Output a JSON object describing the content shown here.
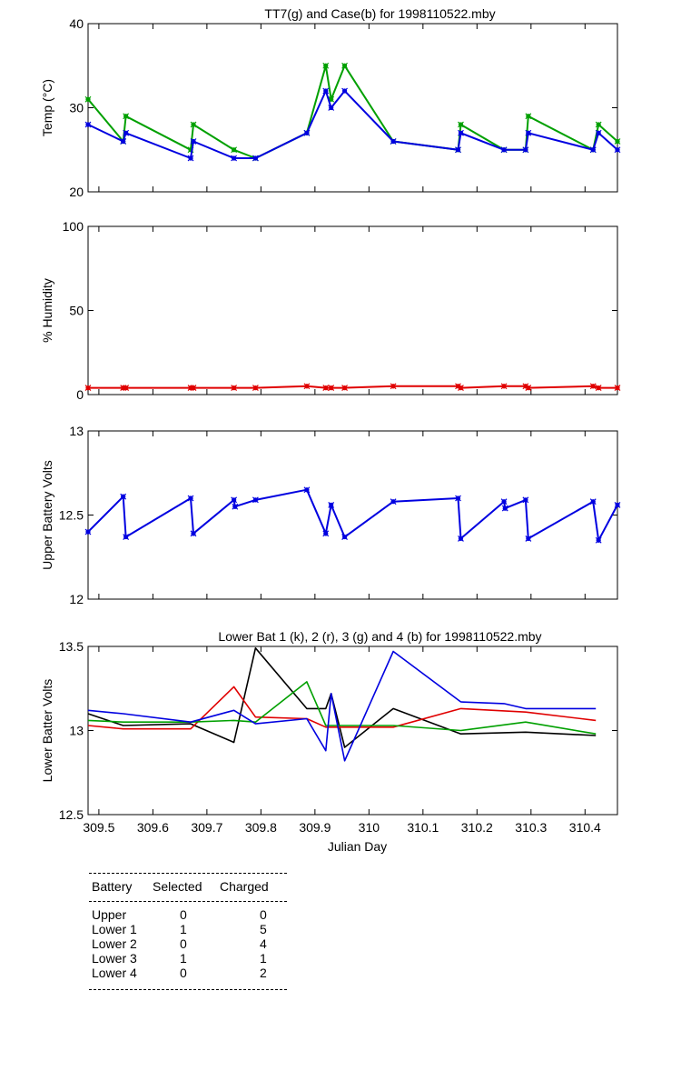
{
  "chart_data": [
    {
      "type": "line",
      "title": "TT7(g) and Case(b) for 1998110522.mby",
      "xlabel": "",
      "ylabel": "Temp  (°C)",
      "xlim": [
        309.48,
        310.46
      ],
      "ylim": [
        20,
        40
      ],
      "yticks": [
        20,
        30,
        40
      ],
      "grid": false,
      "series": [
        {
          "color": "#00a000",
          "markers": true,
          "points": [
            [
              309.48,
              31
            ],
            [
              309.545,
              26
            ],
            [
              309.55,
              29
            ],
            [
              309.67,
              25
            ],
            [
              309.675,
              28
            ],
            [
              309.75,
              25
            ],
            [
              309.79,
              24
            ],
            [
              309.885,
              27
            ],
            [
              309.92,
              35
            ],
            [
              309.93,
              31
            ],
            [
              309.955,
              35
            ],
            [
              310.045,
              26
            ],
            [
              310.165,
              25
            ],
            [
              310.17,
              28
            ],
            [
              310.25,
              25
            ],
            [
              310.29,
              25
            ],
            [
              310.295,
              29
            ],
            [
              310.415,
              25
            ],
            [
              310.425,
              28
            ],
            [
              310.46,
              26
            ]
          ]
        },
        {
          "color": "#0000e0",
          "markers": true,
          "points": [
            [
              309.48,
              28
            ],
            [
              309.545,
              26
            ],
            [
              309.55,
              27
            ],
            [
              309.67,
              24
            ],
            [
              309.675,
              26
            ],
            [
              309.75,
              24
            ],
            [
              309.79,
              24
            ],
            [
              309.885,
              27
            ],
            [
              309.92,
              32
            ],
            [
              309.93,
              30
            ],
            [
              309.955,
              32
            ],
            [
              310.045,
              26
            ],
            [
              310.165,
              25
            ],
            [
              310.17,
              27
            ],
            [
              310.25,
              25
            ],
            [
              310.29,
              25
            ],
            [
              310.295,
              27
            ],
            [
              310.415,
              25
            ],
            [
              310.425,
              27
            ],
            [
              310.46,
              25
            ]
          ]
        }
      ]
    },
    {
      "type": "line",
      "title": "",
      "xlabel": "",
      "ylabel": "% Humidity",
      "xlim": [
        309.48,
        310.46
      ],
      "ylim": [
        0,
        100
      ],
      "yticks": [
        0,
        50,
        100
      ],
      "grid": false,
      "series": [
        {
          "color": "#e00000",
          "markers": true,
          "points": [
            [
              309.48,
              4
            ],
            [
              309.545,
              4
            ],
            [
              309.55,
              4
            ],
            [
              309.67,
              4
            ],
            [
              309.675,
              4
            ],
            [
              309.75,
              4
            ],
            [
              309.79,
              4
            ],
            [
              309.885,
              5
            ],
            [
              309.92,
              4
            ],
            [
              309.93,
              4
            ],
            [
              309.955,
              4
            ],
            [
              310.045,
              5
            ],
            [
              310.165,
              5
            ],
            [
              310.17,
              4
            ],
            [
              310.25,
              5
            ],
            [
              310.29,
              5
            ],
            [
              310.295,
              4
            ],
            [
              310.415,
              5
            ],
            [
              310.425,
              4
            ],
            [
              310.46,
              4
            ]
          ]
        }
      ]
    },
    {
      "type": "line",
      "title": "",
      "xlabel": "",
      "ylabel": "Upper Battery Volts",
      "xlim": [
        309.48,
        310.46
      ],
      "ylim": [
        12,
        13
      ],
      "yticks": [
        12,
        12.5,
        13
      ],
      "grid": false,
      "series": [
        {
          "color": "#0000e0",
          "markers": true,
          "points": [
            [
              309.48,
              12.4
            ],
            [
              309.545,
              12.61
            ],
            [
              309.55,
              12.37
            ],
            [
              309.67,
              12.6
            ],
            [
              309.675,
              12.39
            ],
            [
              309.75,
              12.59
            ],
            [
              309.752,
              12.55
            ],
            [
              309.79,
              12.59
            ],
            [
              309.885,
              12.65
            ],
            [
              309.92,
              12.39
            ],
            [
              309.93,
              12.56
            ],
            [
              309.955,
              12.37
            ],
            [
              310.045,
              12.58
            ],
            [
              310.165,
              12.6
            ],
            [
              310.17,
              12.36
            ],
            [
              310.25,
              12.58
            ],
            [
              310.252,
              12.54
            ],
            [
              310.29,
              12.59
            ],
            [
              310.295,
              12.36
            ],
            [
              310.415,
              12.58
            ],
            [
              310.425,
              12.35
            ],
            [
              310.46,
              12.56
            ]
          ]
        }
      ]
    },
    {
      "type": "line",
      "title": "Lower Bat 1 (k), 2 (r), 3 (g) and 4 (b) for 1998110522.mby",
      "xlabel": "Julian Day",
      "ylabel": "Lower Batter Volts",
      "xlim": [
        309.48,
        310.46
      ],
      "ylim": [
        12.5,
        13.5
      ],
      "yticks": [
        12.5,
        13,
        13.5
      ],
      "xticks": [
        309.5,
        309.6,
        309.7,
        309.8,
        309.9,
        310,
        310.1,
        310.2,
        310.3,
        310.4
      ],
      "xticklabels": [
        "309.5",
        "309.6",
        "309.7",
        "309.8",
        "309.9",
        "310",
        "310.1",
        "310.2",
        "310.3",
        "310.4"
      ],
      "grid": false,
      "series": [
        {
          "color": "#000000",
          "markers": false,
          "points": [
            [
              309.48,
              13.1
            ],
            [
              309.545,
              13.03
            ],
            [
              309.67,
              13.04
            ],
            [
              309.75,
              12.93
            ],
            [
              309.79,
              13.49
            ],
            [
              309.885,
              13.13
            ],
            [
              309.92,
              13.13
            ],
            [
              309.93,
              13.22
            ],
            [
              309.955,
              12.9
            ],
            [
              310.045,
              13.13
            ],
            [
              310.17,
              12.98
            ],
            [
              310.29,
              12.99
            ],
            [
              310.42,
              12.97
            ]
          ]
        },
        {
          "color": "#e00000",
          "markers": false,
          "points": [
            [
              309.48,
              13.03
            ],
            [
              309.545,
              13.01
            ],
            [
              309.67,
              13.01
            ],
            [
              309.75,
              13.26
            ],
            [
              309.79,
              13.08
            ],
            [
              309.885,
              13.07
            ],
            [
              309.92,
              13.02
            ],
            [
              309.955,
              13.02
            ],
            [
              310.045,
              13.02
            ],
            [
              310.17,
              13.13
            ],
            [
              310.29,
              13.11
            ],
            [
              310.42,
              13.06
            ]
          ]
        },
        {
          "color": "#00a000",
          "markers": false,
          "points": [
            [
              309.48,
              13.06
            ],
            [
              309.545,
              13.05
            ],
            [
              309.67,
              13.05
            ],
            [
              309.75,
              13.06
            ],
            [
              309.79,
              13.05
            ],
            [
              309.885,
              13.29
            ],
            [
              309.92,
              13.03
            ],
            [
              309.955,
              13.03
            ],
            [
              310.045,
              13.03
            ],
            [
              310.17,
              13
            ],
            [
              310.29,
              13.05
            ],
            [
              310.42,
              12.98
            ]
          ]
        },
        {
          "color": "#0000e0",
          "markers": false,
          "points": [
            [
              309.48,
              13.12
            ],
            [
              309.545,
              13.1
            ],
            [
              309.67,
              13.05
            ],
            [
              309.75,
              13.12
            ],
            [
              309.79,
              13.04
            ],
            [
              309.885,
              13.07
            ],
            [
              309.92,
              12.88
            ],
            [
              309.93,
              13.22
            ],
            [
              309.955,
              12.82
            ],
            [
              310.045,
              13.47
            ],
            [
              310.17,
              13.17
            ],
            [
              310.25,
              13.16
            ],
            [
              310.29,
              13.13
            ],
            [
              310.42,
              13.13
            ]
          ]
        }
      ]
    }
  ],
  "table": {
    "headers": [
      "Battery",
      "Selected",
      "Charged"
    ],
    "rows": [
      {
        "battery": "Upper",
        "selected": "0",
        "charged": "0"
      },
      {
        "battery": "Lower 1",
        "selected": "1",
        "charged": "5"
      },
      {
        "battery": "Lower 2",
        "selected": "0",
        "charged": "4"
      },
      {
        "battery": "Lower 3",
        "selected": "1",
        "charged": "1"
      },
      {
        "battery": "Lower 4",
        "selected": "0",
        "charged": "2"
      }
    ]
  }
}
